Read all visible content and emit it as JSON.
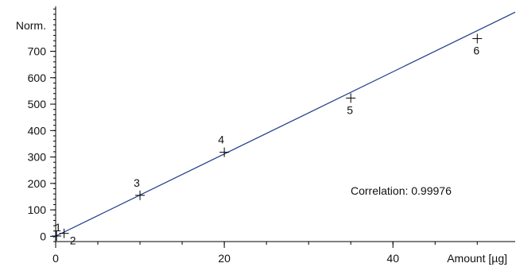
{
  "chart_data": {
    "type": "scatter",
    "title": "",
    "xlabel": "Amount [µg]",
    "ylabel": "Norm.",
    "xlim": [
      0,
      54.5
    ],
    "ylim": [
      -20,
      870
    ],
    "x_ticks": [
      0,
      20,
      40
    ],
    "y_ticks": [
      0,
      100,
      200,
      300,
      400,
      500,
      600,
      700
    ],
    "points": [
      {
        "label": "1",
        "x": 0.1,
        "y": 1
      },
      {
        "label": "2",
        "x": 1,
        "y": 11
      },
      {
        "label": "3",
        "x": 10,
        "y": 155
      },
      {
        "label": "4",
        "x": 20,
        "y": 318
      },
      {
        "label": "5",
        "x": 35,
        "y": 523
      },
      {
        "label": "6",
        "x": 50,
        "y": 748
      }
    ],
    "fit_line": {
      "slope": 15.55,
      "intercept": 0.5,
      "color": "#1f3a8a"
    },
    "annotation": "Correlation: 0.99976",
    "grid": false
  }
}
